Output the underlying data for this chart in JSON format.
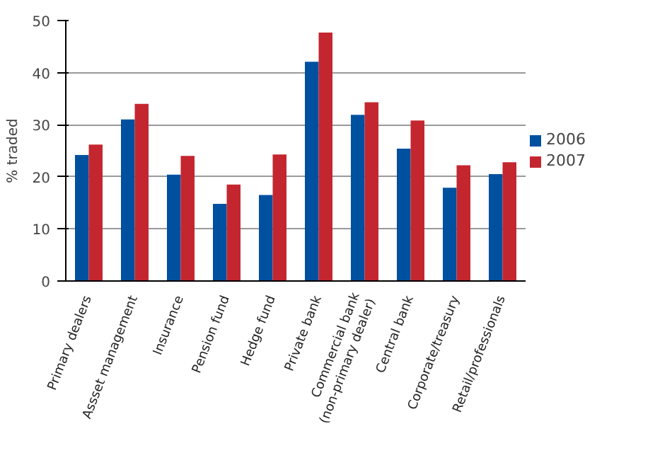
{
  "chart_data": {
    "type": "bar",
    "ylabel": "% traded",
    "categories": [
      "Primary dealers",
      "Assset management",
      "Insurance",
      "Pension fund",
      "Hedge fund",
      "Private bank",
      "Commercial bank\n(non-primary dealer)",
      "Central bank",
      "Corporate/treasury",
      "Retail/professionals"
    ],
    "series": [
      {
        "name": "2006",
        "color": "#0050a0",
        "values": [
          24.2,
          31,
          20.4,
          14.8,
          16.5,
          42.1,
          31.9,
          25.4,
          17.9,
          20.5
        ]
      },
      {
        "name": "2007",
        "color": "#c4262f",
        "values": [
          26.2,
          34,
          24,
          18.5,
          24.3,
          47.7,
          34.3,
          30.8,
          22.2,
          22.8
        ]
      }
    ],
    "ylim": [
      0,
      50
    ],
    "yticks": [
      0,
      10,
      20,
      30,
      40,
      50
    ],
    "grid": "y",
    "legend": "right"
  }
}
